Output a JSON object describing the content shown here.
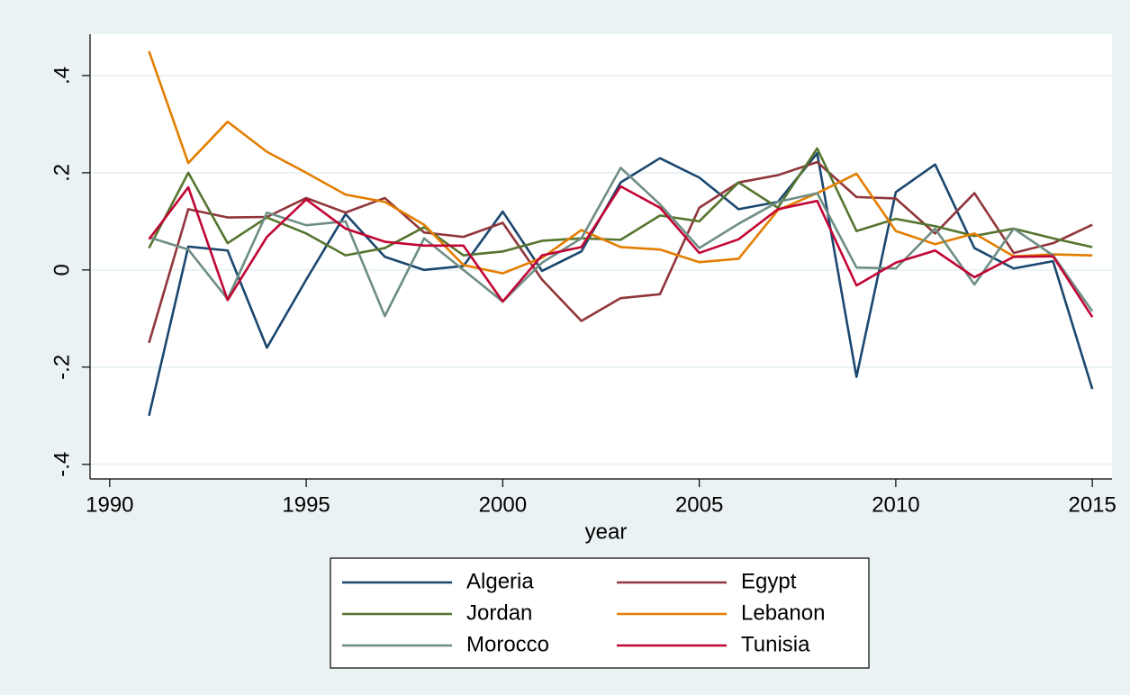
{
  "chart_data": {
    "type": "line",
    "x_label": "year",
    "x": [
      1991,
      1992,
      1993,
      1994,
      1995,
      1996,
      1997,
      1998,
      1999,
      2000,
      2001,
      2002,
      2003,
      2004,
      2005,
      2006,
      2007,
      2008,
      2009,
      2010,
      2011,
      2012,
      2013,
      2014,
      2015
    ],
    "series": [
      {
        "name": "Algeria",
        "color": "#1a476f",
        "values": [
          -0.3,
          0.048,
          0.04,
          -0.16,
          -0.02,
          0.115,
          0.027,
          0.0,
          0.008,
          0.12,
          -0.002,
          0.038,
          0.18,
          0.23,
          0.19,
          0.125,
          0.14,
          0.24,
          -0.22,
          0.16,
          0.217,
          0.045,
          0.003,
          0.018,
          -0.245
        ]
      },
      {
        "name": "Egypt",
        "color": "#90353b",
        "values": [
          -0.15,
          0.125,
          0.108,
          0.109,
          0.148,
          0.118,
          0.148,
          0.077,
          0.068,
          0.097,
          -0.02,
          -0.105,
          -0.058,
          -0.05,
          0.128,
          0.18,
          0.195,
          0.222,
          0.15,
          0.147,
          0.075,
          0.158,
          0.035,
          0.055,
          0.093
        ]
      },
      {
        "name": "Jordan",
        "color": "#55752f",
        "values": [
          0.045,
          0.2,
          0.055,
          0.108,
          0.075,
          0.03,
          0.045,
          0.088,
          0.03,
          0.038,
          0.06,
          0.065,
          0.062,
          0.112,
          0.1,
          0.18,
          0.128,
          0.25,
          0.08,
          0.105,
          0.09,
          0.07,
          0.085,
          0.065,
          0.047
        ]
      },
      {
        "name": "Lebanon",
        "color": "#e37e00",
        "values": [
          0.45,
          0.22,
          0.305,
          0.243,
          0.2,
          0.155,
          0.14,
          0.093,
          0.01,
          -0.007,
          0.025,
          0.082,
          0.047,
          0.042,
          0.016,
          0.023,
          0.123,
          0.158,
          0.198,
          0.08,
          0.053,
          0.075,
          0.028,
          0.032,
          0.03
        ]
      },
      {
        "name": "Morocco",
        "color": "#6e8e84",
        "values": [
          0.067,
          0.042,
          -0.06,
          0.118,
          0.092,
          0.1,
          -0.095,
          0.065,
          0.0,
          -0.065,
          0.015,
          0.065,
          0.21,
          0.135,
          0.045,
          0.095,
          0.14,
          0.158,
          0.005,
          0.003,
          0.085,
          -0.03,
          0.085,
          0.03,
          -0.085
        ]
      },
      {
        "name": "Tunisia",
        "color": "#c10534",
        "values": [
          0.063,
          0.17,
          -0.062,
          0.068,
          0.145,
          0.085,
          0.058,
          0.05,
          0.05,
          -0.065,
          0.03,
          0.047,
          0.172,
          0.128,
          0.035,
          0.063,
          0.125,
          0.142,
          -0.032,
          0.015,
          0.04,
          -0.015,
          0.027,
          0.028,
          -0.097
        ]
      }
    ],
    "xlim": [
      1989.5,
      2015.5
    ],
    "xticks": [
      1990,
      1995,
      2000,
      2005,
      2010,
      2015
    ],
    "ylim": [
      -0.43,
      0.485
    ],
    "yticks": [
      {
        "value": -0.4,
        "label": "-.4"
      },
      {
        "value": -0.2,
        "label": "-.2"
      },
      0,
      {
        "value": 0.2,
        "label": ".2"
      },
      {
        "value": 0.4,
        "label": ".4"
      }
    ],
    "grid": true,
    "legend": "bottom"
  }
}
